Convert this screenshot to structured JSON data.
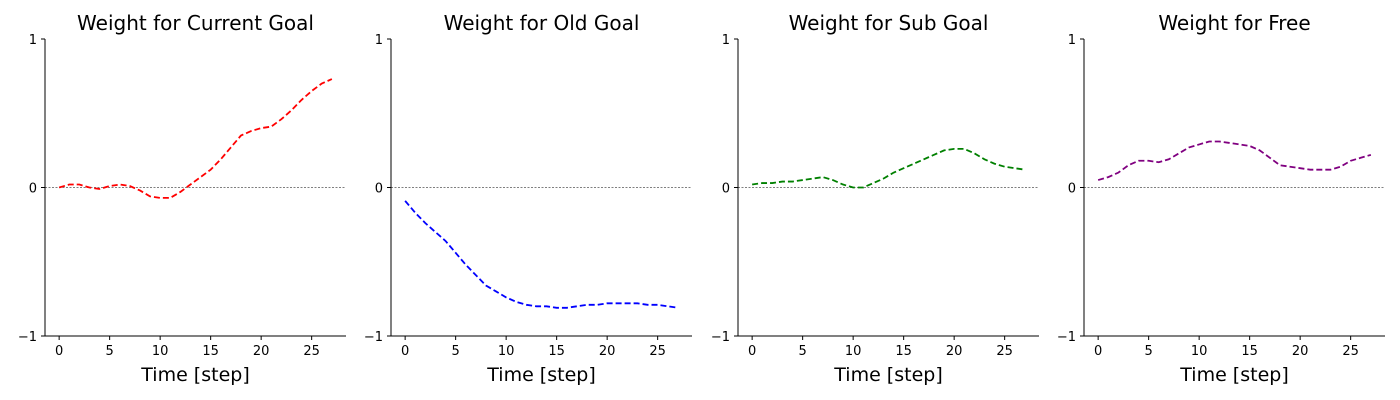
{
  "chart_data": [
    {
      "type": "line",
      "title": "Weight for Current Goal",
      "xlabel": "Time [step]",
      "ylabel": "",
      "xlim": [
        -1.4,
        28.4
      ],
      "ylim": [
        -1,
        1
      ],
      "xticks": [
        0,
        5,
        10,
        15,
        20,
        25
      ],
      "yticks": [
        -1,
        0,
        1
      ],
      "color": "#ff0000",
      "x": [
        0,
        1,
        2,
        3,
        4,
        5,
        6,
        7,
        8,
        9,
        10,
        11,
        12,
        13,
        14,
        15,
        16,
        17,
        18,
        19,
        20,
        21,
        22,
        23,
        24,
        25,
        26,
        27
      ],
      "y": [
        0.0,
        0.02,
        0.02,
        0.0,
        -0.01,
        0.01,
        0.02,
        0.01,
        -0.02,
        -0.06,
        -0.07,
        -0.07,
        -0.03,
        0.02,
        0.07,
        0.12,
        0.19,
        0.27,
        0.35,
        0.38,
        0.4,
        0.41,
        0.46,
        0.52,
        0.59,
        0.65,
        0.7,
        0.73
      ]
    },
    {
      "type": "line",
      "title": "Weight for Old Goal",
      "xlabel": "Time [step]",
      "ylabel": "",
      "xlim": [
        -1.4,
        28.4
      ],
      "ylim": [
        -1,
        1
      ],
      "xticks": [
        0,
        5,
        10,
        15,
        20,
        25
      ],
      "yticks": [
        -1,
        0,
        1
      ],
      "color": "#0000ff",
      "x": [
        0,
        1,
        2,
        3,
        4,
        5,
        6,
        7,
        8,
        9,
        10,
        11,
        12,
        13,
        14,
        15,
        16,
        17,
        18,
        19,
        20,
        21,
        22,
        23,
        24,
        25,
        26,
        27
      ],
      "y": [
        -0.09,
        -0.17,
        -0.24,
        -0.3,
        -0.36,
        -0.44,
        -0.52,
        -0.59,
        -0.66,
        -0.7,
        -0.74,
        -0.77,
        -0.79,
        -0.8,
        -0.8,
        -0.81,
        -0.81,
        -0.8,
        -0.79,
        -0.79,
        -0.78,
        -0.78,
        -0.78,
        -0.78,
        -0.79,
        -0.79,
        -0.8,
        -0.81
      ]
    },
    {
      "type": "line",
      "title": "Weight for Sub Goal",
      "xlabel": "Time [step]",
      "ylabel": "",
      "xlim": [
        -1.4,
        28.4
      ],
      "ylim": [
        -1,
        1
      ],
      "xticks": [
        0,
        5,
        10,
        15,
        20,
        25
      ],
      "yticks": [
        -1,
        0,
        1
      ],
      "color": "#008000",
      "x": [
        0,
        1,
        2,
        3,
        4,
        5,
        6,
        7,
        8,
        9,
        10,
        11,
        12,
        13,
        14,
        15,
        16,
        17,
        18,
        19,
        20,
        21,
        22,
        23,
        24,
        25,
        26,
        27
      ],
      "y": [
        0.02,
        0.03,
        0.03,
        0.04,
        0.04,
        0.05,
        0.06,
        0.07,
        0.05,
        0.02,
        0.0,
        0.0,
        0.03,
        0.06,
        0.1,
        0.13,
        0.16,
        0.19,
        0.22,
        0.25,
        0.26,
        0.26,
        0.23,
        0.19,
        0.16,
        0.14,
        0.13,
        0.12
      ]
    },
    {
      "type": "line",
      "title": "Weight for Free",
      "xlabel": "Time [step]",
      "ylabel": "",
      "xlim": [
        -1.4,
        28.4
      ],
      "ylim": [
        -1,
        1
      ],
      "xticks": [
        0,
        5,
        10,
        15,
        20,
        25
      ],
      "yticks": [
        -1,
        0,
        1
      ],
      "color": "#800080",
      "x": [
        0,
        1,
        2,
        3,
        4,
        5,
        6,
        7,
        8,
        9,
        10,
        11,
        12,
        13,
        14,
        15,
        16,
        17,
        18,
        19,
        20,
        21,
        22,
        23,
        24,
        25,
        26,
        27
      ],
      "y": [
        0.05,
        0.07,
        0.1,
        0.15,
        0.18,
        0.18,
        0.17,
        0.19,
        0.23,
        0.27,
        0.29,
        0.31,
        0.31,
        0.3,
        0.29,
        0.28,
        0.25,
        0.2,
        0.15,
        0.14,
        0.13,
        0.12,
        0.12,
        0.12,
        0.14,
        0.18,
        0.2,
        0.22
      ]
    }
  ]
}
